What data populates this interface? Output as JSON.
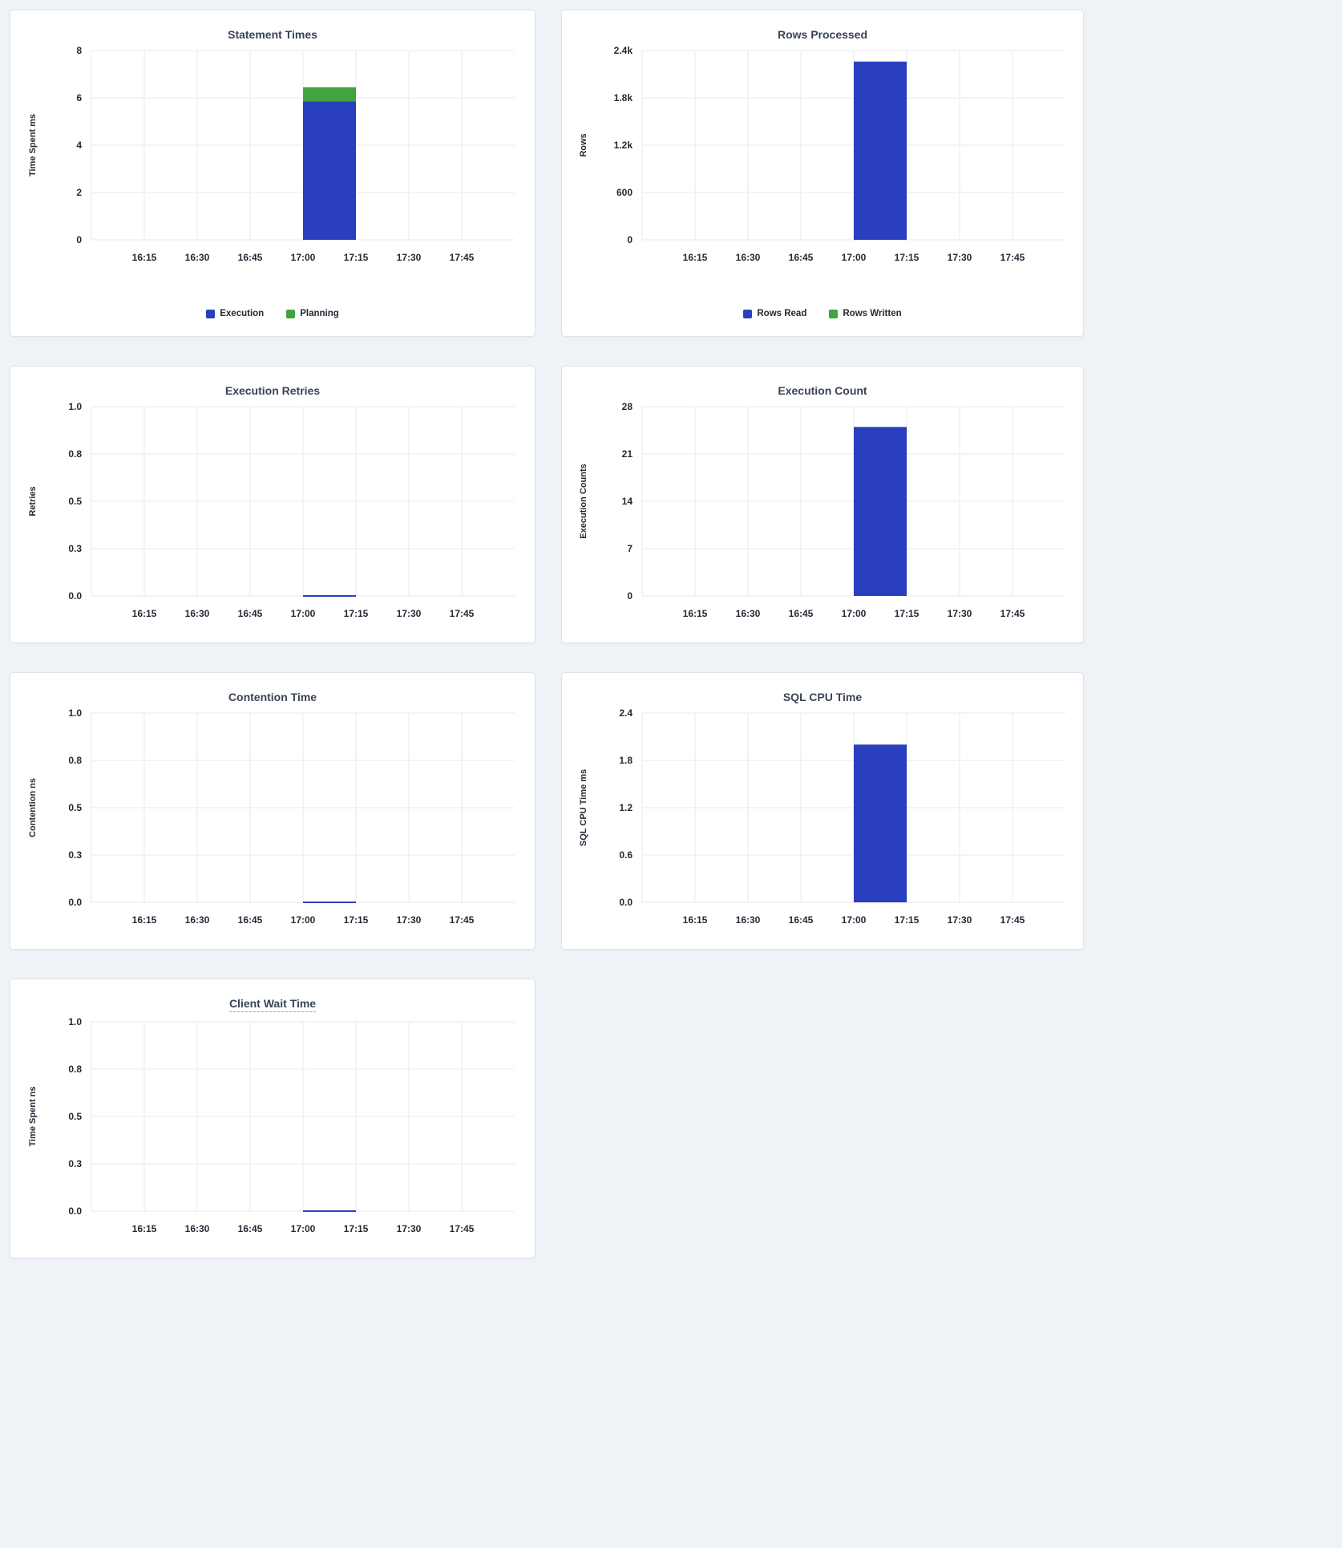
{
  "page": {
    "background_color": "#eff3f7",
    "card_background": "#ffffff"
  },
  "colors": {
    "bar_blue": "#2a3fbe",
    "bar_green": "#43a340",
    "grid": "#e9eaec",
    "axis_text": "#242a35",
    "title_text": "#394455"
  },
  "x_axis": {
    "labels": [
      "16:15",
      "16:30",
      "16:45",
      "17:00",
      "17:15",
      "17:30",
      "17:45"
    ],
    "units": [
      1,
      2,
      3,
      4,
      5,
      6,
      7
    ],
    "domain": [
      0,
      8
    ],
    "bar_span": [
      4,
      5
    ]
  },
  "chart_data": [
    {
      "type": "bar",
      "title": "Statement Times",
      "title_underlined": false,
      "ylabel": "Time Spent ms",
      "ylim": [
        0,
        8
      ],
      "yticks": [
        {
          "v": 0,
          "label": "0"
        },
        {
          "v": 2,
          "label": "2"
        },
        {
          "v": 4,
          "label": "4"
        },
        {
          "v": 6,
          "label": "6"
        },
        {
          "v": 8,
          "label": "8"
        }
      ],
      "legend": true,
      "series": [
        {
          "name": "Execution",
          "color": "#2a3fbe",
          "value": 5.85
        },
        {
          "name": "Planning",
          "color": "#43a340",
          "value": 0.6
        }
      ]
    },
    {
      "type": "bar",
      "title": "Rows Processed",
      "title_underlined": false,
      "ylabel": "Rows",
      "ylim": [
        0,
        2400
      ],
      "yticks": [
        {
          "v": 0,
          "label": "0"
        },
        {
          "v": 600,
          "label": "600"
        },
        {
          "v": 1200,
          "label": "1.2k"
        },
        {
          "v": 1800,
          "label": "1.8k"
        },
        {
          "v": 2400,
          "label": "2.4k"
        }
      ],
      "legend": true,
      "series": [
        {
          "name": "Rows Read",
          "color": "#2a3fbe",
          "value": 2260
        },
        {
          "name": "Rows Written",
          "color": "#43a340",
          "value": 0
        }
      ]
    },
    {
      "type": "bar",
      "title": "Execution Retries",
      "title_underlined": false,
      "ylabel": "Retries",
      "ylim": [
        0,
        1
      ],
      "yticks": [
        {
          "v": 0,
          "label": "0.0"
        },
        {
          "v": 0.25,
          "label": "0.3"
        },
        {
          "v": 0.5,
          "label": "0.5"
        },
        {
          "v": 0.75,
          "label": "0.8"
        },
        {
          "v": 1,
          "label": "1.0"
        }
      ],
      "legend": false,
      "series": [
        {
          "color": "#2a3fbe",
          "value": 0
        }
      ]
    },
    {
      "type": "bar",
      "title": "Execution Count",
      "title_underlined": false,
      "ylabel": "Execution Counts",
      "ylim": [
        0,
        28
      ],
      "yticks": [
        {
          "v": 0,
          "label": "0"
        },
        {
          "v": 7,
          "label": "7"
        },
        {
          "v": 14,
          "label": "14"
        },
        {
          "v": 21,
          "label": "21"
        },
        {
          "v": 28,
          "label": "28"
        }
      ],
      "legend": false,
      "series": [
        {
          "color": "#2a3fbe",
          "value": 25
        }
      ]
    },
    {
      "type": "bar",
      "title": "Contention Time",
      "title_underlined": false,
      "ylabel": "Contention ns",
      "ylim": [
        0,
        1
      ],
      "yticks": [
        {
          "v": 0,
          "label": "0.0"
        },
        {
          "v": 0.25,
          "label": "0.3"
        },
        {
          "v": 0.5,
          "label": "0.5"
        },
        {
          "v": 0.75,
          "label": "0.8"
        },
        {
          "v": 1,
          "label": "1.0"
        }
      ],
      "legend": false,
      "series": [
        {
          "color": "#2a3fbe",
          "value": 0
        }
      ]
    },
    {
      "type": "bar",
      "title": "SQL CPU Time",
      "title_underlined": false,
      "ylabel": "SQL CPU Time ms",
      "ylim": [
        0,
        2.4
      ],
      "yticks": [
        {
          "v": 0,
          "label": "0.0"
        },
        {
          "v": 0.6,
          "label": "0.6"
        },
        {
          "v": 1.2,
          "label": "1.2"
        },
        {
          "v": 1.8,
          "label": "1.8"
        },
        {
          "v": 2.4,
          "label": "2.4"
        }
      ],
      "legend": false,
      "series": [
        {
          "color": "#2a3fbe",
          "value": 2.0
        }
      ]
    },
    {
      "type": "bar",
      "title": "Client Wait Time",
      "title_underlined": true,
      "ylabel": "Time Spent ns",
      "ylim": [
        0,
        1
      ],
      "yticks": [
        {
          "v": 0,
          "label": "0.0"
        },
        {
          "v": 0.25,
          "label": "0.3"
        },
        {
          "v": 0.5,
          "label": "0.5"
        },
        {
          "v": 0.75,
          "label": "0.8"
        },
        {
          "v": 1,
          "label": "1.0"
        }
      ],
      "legend": false,
      "series": [
        {
          "color": "#2a3fbe",
          "value": 0
        }
      ]
    }
  ]
}
